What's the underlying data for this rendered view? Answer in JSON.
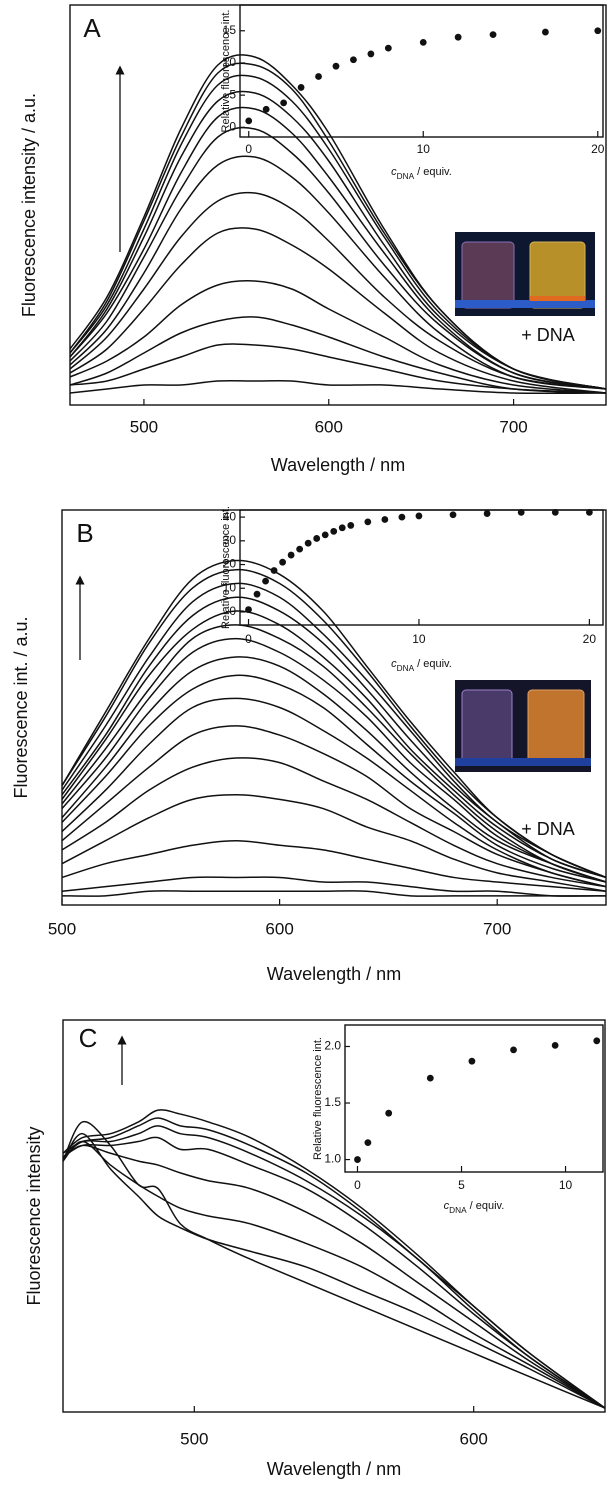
{
  "chart_data": [
    {
      "type": "line",
      "panel": "A",
      "xlabel": "Wavelength / nm",
      "ylabel": "Fluorescence intensity / a.u.",
      "x": [
        460,
        480,
        500,
        520,
        540,
        560,
        580,
        600,
        630,
        660,
        700,
        750
      ],
      "xlim": [
        460,
        750
      ],
      "xticks": [
        500,
        600,
        700
      ],
      "ylim": [
        0,
        100
      ],
      "color": "#111111",
      "series": [
        {
          "values": [
            14,
            27,
            47,
            69,
            85,
            87,
            80,
            68,
            44,
            24,
            9,
            4
          ]
        },
        {
          "values": [
            13,
            26,
            46,
            67,
            83,
            85,
            79,
            66,
            43,
            24,
            9,
            4
          ]
        },
        {
          "values": [
            13,
            25,
            44,
            65,
            80,
            82,
            76,
            64,
            42,
            23,
            9,
            4
          ]
        },
        {
          "values": [
            12,
            24,
            42,
            62,
            76,
            78,
            72,
            61,
            40,
            22,
            9,
            4
          ]
        },
        {
          "values": [
            12,
            23,
            39,
            58,
            72,
            74,
            68,
            57,
            38,
            21,
            8,
            4
          ]
        },
        {
          "values": [
            11,
            21,
            37,
            54,
            67,
            69,
            63,
            53,
            35,
            20,
            8,
            4
          ]
        },
        {
          "values": [
            10,
            19,
            33,
            49,
            60,
            62,
            57,
            48,
            32,
            18,
            7,
            4
          ]
        },
        {
          "values": [
            9,
            17,
            29,
            42,
            51,
            53,
            49,
            41,
            27,
            16,
            7,
            4
          ]
        },
        {
          "values": [
            8,
            14,
            24,
            35,
            43,
            44,
            40,
            34,
            23,
            13,
            6,
            3
          ]
        },
        {
          "values": [
            7,
            11,
            17,
            25,
            30,
            31,
            29,
            24,
            17,
            10,
            5,
            3
          ]
        },
        {
          "values": [
            5,
            8,
            13,
            18,
            21,
            22,
            20,
            17,
            12,
            8,
            4,
            3
          ]
        },
        {
          "values": [
            5,
            6,
            9,
            12,
            15,
            15,
            14,
            12,
            9,
            6,
            4,
            3
          ]
        },
        {
          "values": [
            3,
            4,
            5,
            5,
            6,
            6,
            6,
            5,
            5,
            4,
            3,
            3
          ]
        }
      ]
    },
    {
      "type": "scatter",
      "ylabel": "Relative fluorescence int.",
      "xlabel_parts": [
        "c",
        "DNA",
        " / equiv."
      ],
      "annotations": [
        "+ DNA"
      ],
      "x": [
        0,
        1,
        2,
        3,
        4,
        5,
        6,
        7,
        8,
        10,
        12,
        14,
        17,
        20
      ],
      "values": [
        1,
        2.8,
        3.8,
        6.2,
        7.9,
        9.5,
        10.5,
        11.4,
        12.3,
        13.2,
        14.0,
        14.4,
        14.8,
        15.0
      ],
      "xlim": [
        -0.5,
        20.3
      ],
      "xticks": [
        0,
        10,
        20
      ],
      "ylim": [
        -1.5,
        19
      ],
      "yticks": [
        0,
        5,
        10,
        15
      ],
      "color": "#111111"
    },
    {
      "type": "line",
      "panel": "B",
      "xlabel": "Wavelength / nm",
      "ylabel": "Fluorescence int. / a.u.",
      "x": [
        500,
        520,
        540,
        560,
        580,
        600,
        620,
        640,
        660,
        680,
        700,
        725,
        750
      ],
      "xlim": [
        500,
        750
      ],
      "xticks": [
        500,
        600,
        700
      ],
      "ylim": [
        0,
        86
      ],
      "color": "#111111",
      "series": [
        {
          "values": [
            26,
            42,
            58,
            71,
            75,
            72,
            64,
            52,
            40,
            29,
            19,
            11,
            6
          ]
        },
        {
          "values": [
            26,
            41,
            57,
            69,
            73,
            70,
            62,
            51,
            39,
            28,
            19,
            11,
            6
          ]
        },
        {
          "values": [
            25,
            39,
            54,
            66,
            70,
            67,
            59,
            49,
            38,
            27,
            18,
            11,
            6
          ]
        },
        {
          "values": [
            24,
            37,
            52,
            63,
            67,
            64,
            57,
            47,
            36,
            26,
            18,
            10,
            6
          ]
        },
        {
          "values": [
            23,
            36,
            50,
            60,
            64,
            61,
            54,
            45,
            34,
            25,
            17,
            10,
            6
          ]
        },
        {
          "values": [
            22,
            34,
            47,
            58,
            61,
            58,
            52,
            43,
            33,
            24,
            16,
            9,
            5
          ]
        },
        {
          "values": [
            21,
            32,
            45,
            55,
            58,
            55,
            49,
            41,
            31,
            23,
            15,
            9,
            5
          ]
        },
        {
          "values": [
            19,
            30,
            42,
            51,
            54,
            52,
            46,
            38,
            29,
            21,
            14,
            9,
            5
          ]
        },
        {
          "values": [
            18,
            28,
            39,
            47,
            50,
            48,
            43,
            35,
            27,
            20,
            13,
            8,
            5
          ]
        },
        {
          "values": [
            16,
            25,
            35,
            43,
            45,
            43,
            38,
            32,
            25,
            18,
            12,
            7,
            4
          ]
        },
        {
          "values": [
            14,
            22,
            30,
            37,
            39,
            37,
            33,
            28,
            21,
            16,
            11,
            7,
            4
          ]
        },
        {
          "values": [
            12,
            18,
            25,
            30,
            32,
            31,
            27,
            23,
            18,
            13,
            9,
            6,
            4
          ]
        },
        {
          "values": [
            9,
            14,
            19,
            23,
            24,
            23,
            21,
            17,
            14,
            10,
            7,
            5,
            3
          ]
        },
        {
          "values": [
            6,
            9,
            11,
            13,
            14,
            13,
            12,
            10,
            8,
            6,
            5,
            4,
            3
          ]
        },
        {
          "values": [
            3,
            4,
            5,
            6,
            6,
            6,
            5,
            5,
            4,
            3,
            3,
            2,
            2
          ]
        },
        {
          "values": [
            2,
            2,
            3,
            3,
            3,
            3,
            3,
            3,
            2,
            2,
            2,
            2,
            2
          ]
        }
      ]
    },
    {
      "type": "scatter",
      "ylabel": "Relative fluorescence int.",
      "xlabel_parts": [
        "c",
        "DNA",
        " / equiv."
      ],
      "annotations": [
        "+ DNA"
      ],
      "x": [
        0,
        0.5,
        1,
        1.5,
        2,
        2.5,
        3,
        3.5,
        4,
        4.5,
        5,
        5.5,
        6,
        7,
        8,
        9,
        10,
        12,
        14,
        16,
        18,
        20
      ],
      "values": [
        1,
        7.5,
        13,
        17.5,
        21,
        24,
        26.5,
        29,
        31,
        32.5,
        34,
        35.5,
        36.5,
        38,
        39,
        40,
        40.5,
        41,
        41.5,
        42,
        42,
        42
      ],
      "xlim": [
        -0.5,
        20.8
      ],
      "xticks": [
        0,
        10,
        20
      ],
      "ylim": [
        -5.5,
        43
      ],
      "yticks": [
        0,
        10,
        20,
        30,
        40
      ],
      "color": "#111111"
    },
    {
      "type": "line",
      "panel": "C",
      "xlabel": "Wavelength / nm",
      "ylabel": "Fluorescence intensity",
      "x": [
        453,
        460,
        470,
        480,
        487,
        495,
        505,
        520,
        540,
        560,
        580,
        600,
        620,
        647
      ],
      "xlim": [
        453,
        647
      ],
      "xticks": [
        500,
        600
      ],
      "ylim": [
        0,
        100
      ],
      "color": "#111111",
      "series": [
        {
          "values": [
            66,
            70,
            71,
            74,
            77,
            76,
            74,
            70,
            62,
            52,
            40,
            27,
            15,
            1
          ]
        },
        {
          "values": [
            66,
            69,
            70,
            73,
            75,
            73,
            72,
            68,
            61,
            51,
            39,
            27,
            15,
            1
          ]
        },
        {
          "values": [
            65,
            69,
            69,
            71,
            73,
            71,
            70,
            66,
            59,
            50,
            39,
            26,
            14,
            1
          ]
        },
        {
          "values": [
            65,
            68,
            68,
            69,
            70,
            67,
            67,
            63,
            57,
            48,
            37,
            25,
            14,
            1
          ]
        },
        {
          "values": [
            65,
            68,
            66,
            64,
            63,
            61,
            59,
            57,
            51,
            43,
            33,
            23,
            13,
            1
          ]
        },
        {
          "values": [
            64,
            69,
            63,
            58,
            55,
            52,
            50,
            48,
            43,
            37,
            29,
            20,
            12,
            1
          ]
        },
        {
          "values": [
            64,
            71,
            62,
            55,
            50,
            47,
            44,
            41,
            37,
            31,
            25,
            18,
            11,
            1
          ]
        },
        {
          "values": [
            64,
            74,
            68,
            58,
            57,
            48,
            44,
            39,
            33,
            27,
            21,
            15,
            9,
            1
          ]
        }
      ]
    },
    {
      "type": "scatter",
      "ylabel": "Relative fluorescence int.",
      "xlabel_parts": [
        "c",
        "DNA",
        " / equiv."
      ],
      "x": [
        0,
        0.5,
        1.5,
        3.5,
        5.5,
        7.5,
        9.5,
        11.5
      ],
      "values": [
        1.0,
        1.15,
        1.41,
        1.72,
        1.87,
        1.97,
        2.01,
        2.05
      ],
      "xlim": [
        -0.6,
        11.8
      ],
      "xticks": [
        0,
        5,
        10
      ],
      "ylim": [
        0.89,
        2.19
      ],
      "yticks": [
        {
          "value": 1.0,
          "label": "1.0"
        },
        {
          "value": 1.5,
          "label": "1.5"
        },
        {
          "value": 2.0,
          "label": "2.0"
        }
      ],
      "color": "#111111"
    }
  ]
}
